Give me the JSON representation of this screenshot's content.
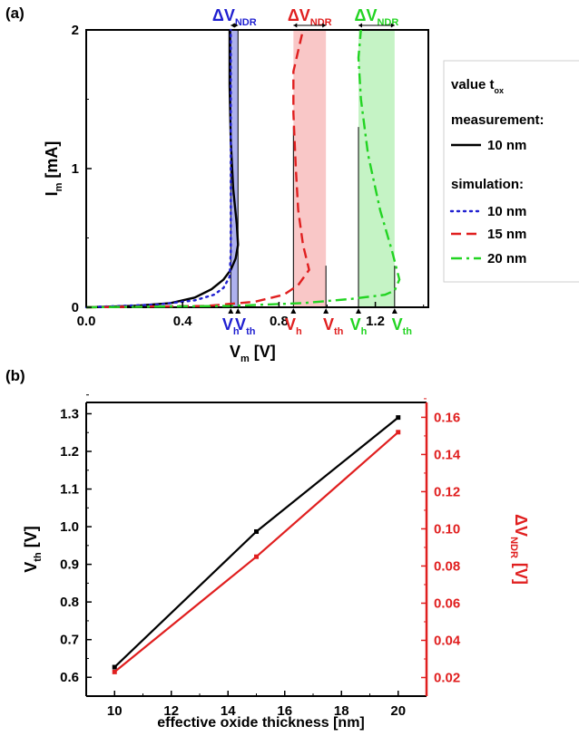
{
  "chart_data": [
    {
      "panel": "(a)",
      "type": "line",
      "xlabel": "V",
      "xlabel_sub": "m",
      "xlabel_unit": " [V]",
      "ylabel": "I",
      "ylabel_sub": "m",
      "ylabel_unit": " [mA]",
      "xlim": [
        0,
        1.42
      ],
      "ylim": [
        0,
        2
      ],
      "xticks": [
        "0.0",
        "0.4",
        "0.8",
        "1.2"
      ],
      "yticks": [
        "0",
        "1",
        "2"
      ],
      "legend": {
        "title": "value t",
        "title_sub": "ox",
        "measurement_label": "measurement:",
        "simulation_label": "simulation:",
        "entries": [
          {
            "label": "10 nm",
            "group": "measurement",
            "color": "#000000",
            "dash": "solid"
          },
          {
            "label": "10 nm",
            "group": "simulation",
            "color": "#1f1fd0",
            "dash": "dot"
          },
          {
            "label": "15 nm",
            "group": "simulation",
            "color": "#e01f1f",
            "dash": "dash"
          },
          {
            "label": "20 nm",
            "group": "simulation",
            "color": "#22d422",
            "dash": "dashdot"
          }
        ]
      },
      "series": [
        {
          "color": "#000000",
          "dash": "solid",
          "points": [
            [
              0,
              0
            ],
            [
              0.2,
              0.01
            ],
            [
              0.35,
              0.03
            ],
            [
              0.45,
              0.07
            ],
            [
              0.52,
              0.13
            ],
            [
              0.57,
              0.2
            ],
            [
              0.6,
              0.27
            ],
            [
              0.62,
              0.35
            ],
            [
              0.63,
              0.45
            ],
            [
              0.625,
              0.6
            ],
            [
              0.61,
              0.85
            ],
            [
              0.6,
              1.2
            ],
            [
              0.595,
              1.6
            ],
            [
              0.595,
              2.0
            ]
          ]
        },
        {
          "color": "#1f1fd0",
          "dash": "dot",
          "points": [
            [
              0,
              0
            ],
            [
              0.3,
              0.02
            ],
            [
              0.45,
              0.05
            ],
            [
              0.53,
              0.09
            ],
            [
              0.57,
              0.14
            ],
            [
              0.595,
              0.22
            ],
            [
              0.6,
              0.4
            ],
            [
              0.6,
              0.8
            ],
            [
              0.6,
              1.2
            ],
            [
              0.6,
              2.0
            ]
          ]
        },
        {
          "color": "#e01f1f",
          "dash": "dash",
          "points": [
            [
              0,
              0
            ],
            [
              0.5,
              0.01
            ],
            [
              0.7,
              0.04
            ],
            [
              0.82,
              0.09
            ],
            [
              0.88,
              0.16
            ],
            [
              0.925,
              0.27
            ],
            [
              0.9,
              0.45
            ],
            [
              0.88,
              0.7
            ],
            [
              0.87,
              1.0
            ],
            [
              0.86,
              1.4
            ],
            [
              0.86,
              1.7
            ],
            [
              0.9,
              2.0
            ]
          ]
        },
        {
          "color": "#22d422",
          "dash": "dashdot",
          "points": [
            [
              0,
              0
            ],
            [
              0.6,
              0.01
            ],
            [
              0.9,
              0.03
            ],
            [
              1.1,
              0.06
            ],
            [
              1.24,
              0.09
            ],
            [
              1.28,
              0.12
            ],
            [
              1.3,
              0.2
            ],
            [
              1.27,
              0.4
            ],
            [
              1.22,
              0.7
            ],
            [
              1.17,
              1.1
            ],
            [
              1.14,
              1.5
            ],
            [
              1.13,
              1.8
            ],
            [
              1.14,
              2.0
            ]
          ]
        }
      ],
      "ndr_bands": [
        {
          "color": "#1f1fd0",
          "fill": "#9a9ee8",
          "vh": 0.6,
          "vth": 0.63,
          "top": 2.0
        },
        {
          "color": "#e01f1f",
          "fill": "#f7b9b9",
          "vh": 0.86,
          "vth": 0.995,
          "top": 2.0
        },
        {
          "color": "#22d422",
          "fill": "#b6f0b6",
          "vh": 1.13,
          "vth": 1.28,
          "top": 2.0
        }
      ],
      "delta_label": "ΔV",
      "delta_sub": "NDR",
      "vh_label": "V",
      "vh_sub": "h",
      "vth_label": "V",
      "vth_sub": "th"
    },
    {
      "panel": "(b)",
      "type": "line",
      "xlabel": "effective oxide thickness [nm]",
      "ylabel_left": "V",
      "ylabel_left_sub": "th",
      "ylabel_left_unit": " [V]",
      "ylabel_right": "ΔV",
      "ylabel_right_sub": "NDR",
      "ylabel_right_unit": " [V]",
      "xlim": [
        9,
        21
      ],
      "ylim_left": [
        0.55,
        1.33
      ],
      "ylim_right": [
        0.01,
        0.168
      ],
      "xticks": [
        "10",
        "12",
        "14",
        "16",
        "18",
        "20"
      ],
      "yticks_left": [
        "0.6",
        "0.7",
        "0.8",
        "0.9",
        "1.0",
        "1.1",
        "1.2",
        "1.3"
      ],
      "yticks_right": [
        "0.02",
        "0.04",
        "0.06",
        "0.08",
        "0.10",
        "0.12",
        "0.14",
        "0.16"
      ],
      "series": [
        {
          "axis": "left",
          "color": "#000000",
          "x": [
            10,
            15,
            20
          ],
          "y": [
            0.627,
            0.987,
            1.29
          ]
        },
        {
          "axis": "right",
          "color": "#e01f1f",
          "x": [
            10,
            15,
            20
          ],
          "y": [
            0.023,
            0.085,
            0.152
          ]
        }
      ]
    }
  ]
}
